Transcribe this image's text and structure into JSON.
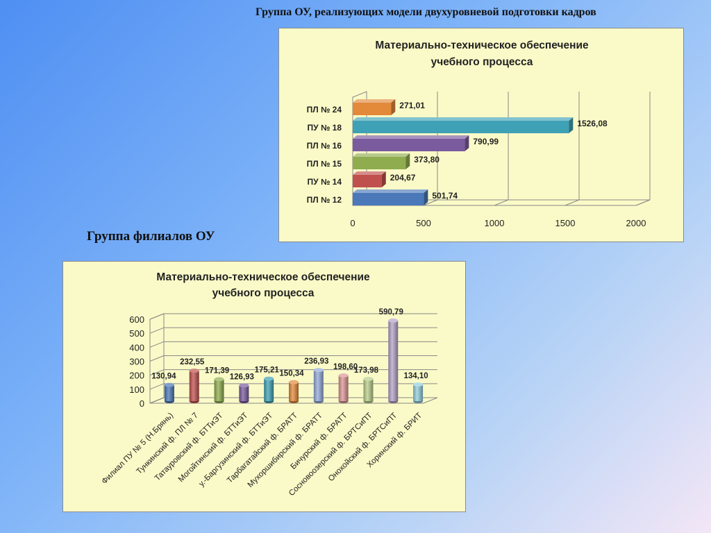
{
  "slide": {
    "title_top": "Группа ОУ, реализующих модели двухуровневой подготовки кадров",
    "title_middle": "Группа филиалов ОУ"
  },
  "chart_data": [
    {
      "type": "bar",
      "orientation": "horizontal",
      "title": "Материально-техническое обеспечение учебного процесса",
      "title_lines": [
        "Материально-техническое обеспечение",
        "учебного процесса"
      ],
      "categories": [
        "ПЛ № 24",
        "ПУ № 18",
        "ПЛ № 16",
        "ПЛ № 15",
        "ПУ № 14",
        "ПЛ № 12"
      ],
      "values": [
        271.01,
        1526.08,
        790.99,
        373.8,
        204.67,
        501.74
      ],
      "value_labels": [
        "271,01",
        "1526,08",
        "790,99",
        "373,80",
        "204,67",
        "501,74"
      ],
      "colors": [
        "#e2893a",
        "#3fa1b5",
        "#7a5b9e",
        "#8fad4f",
        "#c0504d",
        "#4a78b8"
      ],
      "xlim": [
        0,
        2000
      ],
      "xticks": [
        "0",
        "500",
        "1000",
        "1500",
        "2000"
      ],
      "grid": true,
      "legend": "none"
    },
    {
      "type": "bar",
      "orientation": "vertical",
      "title": "Материально-техническое обеспечение учебного процесса",
      "title_lines": [
        "Материально-техническое обеспечение",
        "учебного процесса"
      ],
      "categories": [
        "Филиал ПУ № 5 (Н.Брянь)",
        "Тункинский ф. ПЛ № 7",
        "Татауровский ф. БТТиЭТ",
        "Могойтинский ф. БТТиЭТ",
        "у.-Баргузинский ф. БТТиЭТ",
        "Тарбагатайский ф. БРАТТ",
        "Мухоршибирский ф. БРАТТ",
        "Бичурский ф. БРАТТ",
        "Сосновоозерский ф. БРТСиПТ",
        "Онохойский ф. БРТСиПТ",
        "Хоринский ф. БРИТ"
      ],
      "values": [
        130.94,
        232.55,
        171.39,
        126.93,
        175.21,
        150.34,
        236.93,
        198.6,
        173.98,
        590.79,
        134.1
      ],
      "value_labels": [
        "130,94",
        "232,55",
        "171,39",
        "126,93",
        "175,21",
        "150,34",
        "236,93",
        "198,60",
        "173,98",
        "590,79",
        "134,10"
      ],
      "colors": [
        "#4a78b8",
        "#c0504d",
        "#8fad4f",
        "#7a5b9e",
        "#3fa1b5",
        "#e2893a",
        "#93a9d8",
        "#d99594",
        "#b8cf8a",
        "#b3a2c7",
        "#92cddc"
      ],
      "ylim": [
        0,
        600
      ],
      "yticks": [
        "0",
        "100",
        "200",
        "300",
        "400",
        "500",
        "600"
      ],
      "grid": true,
      "legend": "none"
    }
  ]
}
